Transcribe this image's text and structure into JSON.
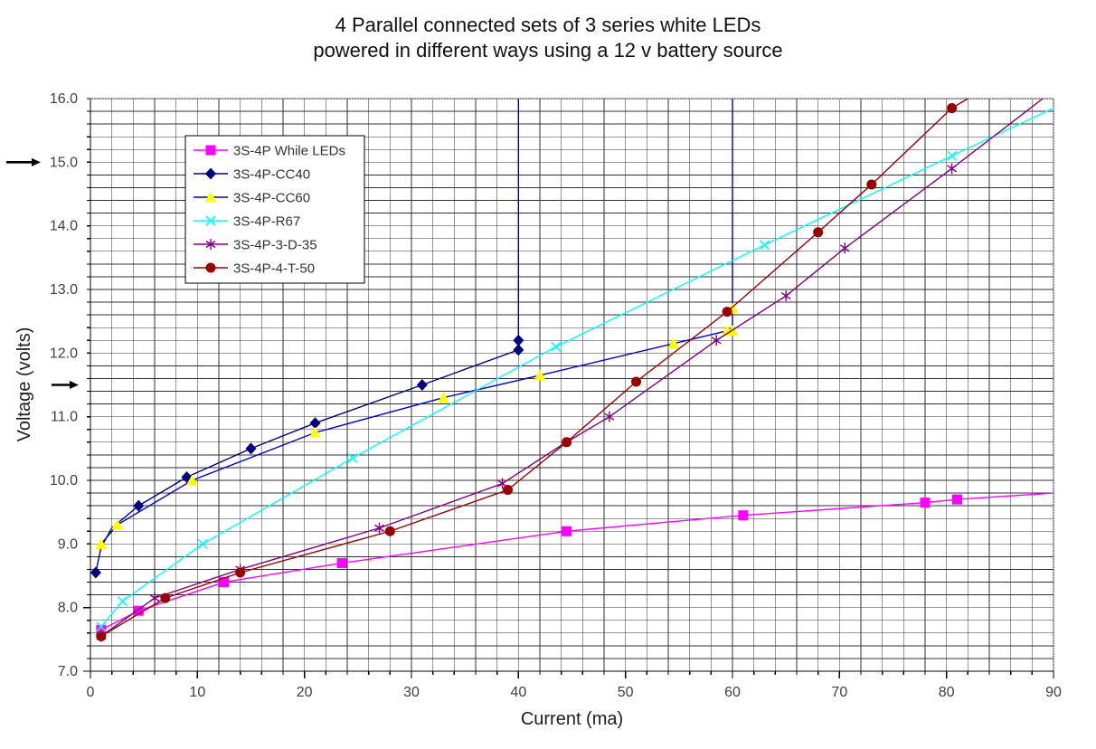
{
  "title": {
    "line1": "4 Parallel connected sets of 3 series white LEDs",
    "line2": "powered in different ways using a 12 v battery source"
  },
  "chart_data": {
    "type": "line",
    "title": "4 Parallel connected sets of 3 series white LEDs powered in different ways using a 12 v battery source",
    "xlabel": "Current (ma)",
    "ylabel": "Voltage (volts)",
    "xlim": [
      0,
      90
    ],
    "ylim": [
      7.0,
      16.0
    ],
    "x_major_step": 10,
    "x_minor_step": 2,
    "y_major_step": 1.0,
    "y_minor_step": 0.2,
    "grid": "minor-on",
    "legend_position": "upper-left-inside",
    "background": "#ffffff",
    "grid_color": "#303030",
    "series": [
      {
        "name": "3S-4P While LEDs",
        "color": "#ff00ff",
        "marker": "square",
        "marker_color": "#ff00ff",
        "line": [
          [
            0.8,
            7.6
          ],
          [
            1,
            7.65
          ],
          [
            4.5,
            7.95
          ],
          [
            12.5,
            8.4
          ],
          [
            23.5,
            8.7
          ],
          [
            44.5,
            9.2
          ],
          [
            61,
            9.45
          ],
          [
            78,
            9.65
          ],
          [
            81,
            9.7
          ],
          [
            90,
            9.8
          ]
        ],
        "markers": [
          [
            1,
            7.65
          ],
          [
            4.5,
            7.95
          ],
          [
            12.5,
            8.4
          ],
          [
            23.5,
            8.7
          ],
          [
            44.5,
            9.2
          ],
          [
            61,
            9.45
          ],
          [
            78,
            9.65
          ],
          [
            81,
            9.7
          ]
        ]
      },
      {
        "name": "3S-4P-CC40",
        "color": "#000080",
        "marker": "diamond",
        "marker_color": "#000080",
        "line": [
          [
            0.5,
            8.55
          ],
          [
            1,
            8.95
          ],
          [
            2,
            9.25
          ],
          [
            4.5,
            9.6
          ],
          [
            9,
            10.05
          ],
          [
            15,
            10.5
          ],
          [
            21,
            10.9
          ],
          [
            31,
            11.5
          ],
          [
            40,
            12.05
          ],
          [
            40,
            12.2
          ],
          [
            40,
            16.0
          ]
        ],
        "markers": [
          [
            0.5,
            8.55
          ],
          [
            4.5,
            9.6
          ],
          [
            9,
            10.05
          ],
          [
            15,
            10.5
          ],
          [
            21,
            10.9
          ],
          [
            31,
            11.5
          ],
          [
            40,
            12.05
          ],
          [
            40,
            12.2
          ]
        ]
      },
      {
        "name": "3S-4P-CC60",
        "color": "#0000cc",
        "marker": "triangle",
        "marker_color": "#ffff00",
        "line": [
          [
            1,
            9.0
          ],
          [
            2.5,
            9.3
          ],
          [
            9.5,
            10.0
          ],
          [
            21,
            10.75
          ],
          [
            33,
            11.3
          ],
          [
            42,
            11.65
          ],
          [
            54.5,
            12.15
          ],
          [
            59.5,
            12.35
          ],
          [
            60,
            12.4
          ],
          [
            60,
            16.0
          ]
        ],
        "markers": [
          [
            1,
            9.0
          ],
          [
            2.5,
            9.3
          ],
          [
            9.5,
            10.0
          ],
          [
            21,
            10.75
          ],
          [
            33,
            11.3
          ],
          [
            42,
            11.65
          ],
          [
            54.5,
            12.15
          ],
          [
            59.5,
            12.35
          ],
          [
            60,
            12.35
          ],
          [
            60,
            12.7
          ]
        ]
      },
      {
        "name": "3S-4P-R67",
        "color": "#00ffff",
        "marker": "x",
        "marker_color": "#00ffff",
        "line": [
          [
            1,
            7.7
          ],
          [
            3,
            8.1
          ],
          [
            10.5,
            9.0
          ],
          [
            24.5,
            10.35
          ],
          [
            43.5,
            12.1
          ],
          [
            63,
            13.7
          ],
          [
            80.5,
            15.1
          ],
          [
            90,
            15.85
          ]
        ],
        "markers": [
          [
            1,
            7.7
          ],
          [
            3,
            8.1
          ],
          [
            10.5,
            9.0
          ],
          [
            24.5,
            10.35
          ],
          [
            43.5,
            12.1
          ],
          [
            63,
            13.7
          ],
          [
            80.5,
            15.1
          ]
        ]
      },
      {
        "name": "3S-4P-3-D-35",
        "color": "#800080",
        "marker": "asterisk",
        "marker_color": "#800080",
        "line": [
          [
            1,
            7.55
          ],
          [
            6,
            8.15
          ],
          [
            14,
            8.6
          ],
          [
            27,
            9.25
          ],
          [
            38.5,
            9.95
          ],
          [
            44,
            10.55
          ],
          [
            48.5,
            11.0
          ],
          [
            58.5,
            12.2
          ],
          [
            65,
            12.9
          ],
          [
            70.5,
            13.65
          ],
          [
            80.5,
            14.9
          ],
          [
            89,
            16.0
          ]
        ],
        "markers": [
          [
            1,
            7.55
          ],
          [
            6,
            8.15
          ],
          [
            14,
            8.6
          ],
          [
            27,
            9.25
          ],
          [
            38.5,
            9.95
          ],
          [
            48.5,
            11.0
          ],
          [
            58.5,
            12.2
          ],
          [
            65,
            12.9
          ],
          [
            70.5,
            13.65
          ],
          [
            80.5,
            14.9
          ]
        ]
      },
      {
        "name": "3S-4P-4-T-50",
        "color": "#990000",
        "marker": "circle",
        "marker_color": "#990000",
        "line": [
          [
            1,
            7.55
          ],
          [
            7,
            8.15
          ],
          [
            14,
            8.55
          ],
          [
            28,
            9.2
          ],
          [
            39,
            9.85
          ],
          [
            44.5,
            10.6
          ],
          [
            51,
            11.55
          ],
          [
            59.5,
            12.65
          ],
          [
            68,
            13.9
          ],
          [
            73,
            14.65
          ],
          [
            80.5,
            15.85
          ],
          [
            82,
            16.0
          ]
        ],
        "markers": [
          [
            1,
            7.55
          ],
          [
            7,
            8.15
          ],
          [
            14,
            8.55
          ],
          [
            28,
            9.2
          ],
          [
            39,
            9.85
          ],
          [
            44.5,
            10.6
          ],
          [
            51,
            11.55
          ],
          [
            59.5,
            12.65
          ],
          [
            68,
            13.9
          ],
          [
            73,
            14.65
          ],
          [
            80.5,
            15.85
          ]
        ]
      }
    ],
    "annotations": [
      {
        "type": "arrow",
        "points_at_voltage": 15.0
      },
      {
        "type": "arrow",
        "points_at_voltage": 11.5
      }
    ]
  }
}
